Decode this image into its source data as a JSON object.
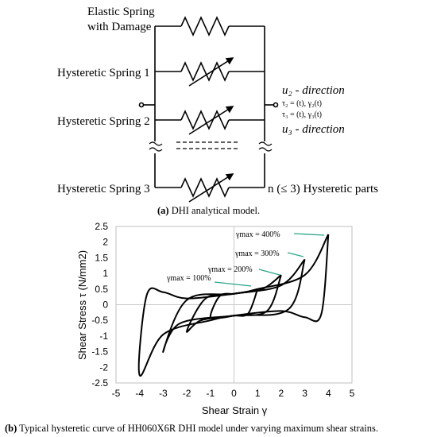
{
  "model": {
    "springs": [
      {
        "label_line1": "Elastic Spring",
        "label_line2": "with Damage"
      },
      {
        "label": "Hysteretic Spring 1"
      },
      {
        "label": "Hysteretic Spring 2"
      },
      {
        "label": "Hysteretic Spring 3"
      }
    ],
    "u2_dir": "u₂ - direction",
    "tau2": "τ₂ = (t), γ₂(t)",
    "tau3": "τ₃ = (t), γ₃(t)",
    "u3_dir": "u₃ - direction",
    "n_parts": "n (≤ 3) Hysteretic parts",
    "caption_tag": "(a)",
    "caption_text": " DHI analytical model."
  },
  "chart_data": {
    "type": "line",
    "xlabel": "Shear Strain γ",
    "ylabel": "Shear Stress τ (N/mm2)",
    "xlim": [
      -5,
      5
    ],
    "ylim": [
      -2.5,
      2.5
    ],
    "x_ticks": [
      "-5",
      "-4",
      "-3",
      "-2",
      "-1",
      "0",
      "1",
      "2",
      "3",
      "4",
      "5"
    ],
    "y_ticks": [
      "2.5",
      "2",
      "1.5",
      "1",
      "0.5",
      "0",
      "-0.5",
      "-1",
      "-1.5",
      "-2",
      "-2.5"
    ],
    "annotations": [
      "γmax = 400%",
      "γmax = 300%",
      "γmax = 200%",
      "γmax = 100%"
    ],
    "series": [
      {
        "values": [
          [
            1,
            0.5
          ],
          [
            0.6,
            0.42
          ],
          [
            0,
            0.35
          ],
          [
            -0.6,
            0.28
          ],
          [
            -1,
            -0.38
          ],
          [
            -0.6,
            -0.42
          ],
          [
            0,
            -0.35
          ],
          [
            0.6,
            -0.28
          ],
          [
            1,
            0.5
          ]
        ]
      },
      {
        "values": [
          [
            2,
            0.95
          ],
          [
            1.2,
            0.5
          ],
          [
            0,
            0.35
          ],
          [
            -1.2,
            0.2
          ],
          [
            -2,
            -0.85
          ],
          [
            -1.4,
            -0.5
          ],
          [
            0,
            -0.35
          ],
          [
            1.4,
            -0.2
          ],
          [
            2,
            0.95
          ]
        ]
      },
      {
        "values": [
          [
            3,
            1.45
          ],
          [
            2,
            0.62
          ],
          [
            0,
            0.35
          ],
          [
            -2,
            0.15
          ],
          [
            -3,
            -1.5
          ],
          [
            -2.3,
            -0.6
          ],
          [
            0,
            -0.35
          ],
          [
            2.3,
            -0.15
          ],
          [
            3,
            1.45
          ]
        ]
      },
      {
        "values": [
          [
            4,
            2.25
          ],
          [
            3,
            0.95
          ],
          [
            1,
            0.5
          ],
          [
            0,
            0.35
          ],
          [
            -2,
            0.2
          ],
          [
            -3,
            0.4
          ],
          [
            -3.7,
            0.3
          ],
          [
            -4,
            -2.25
          ],
          [
            -3,
            -0.95
          ],
          [
            -1,
            -0.5
          ],
          [
            0,
            -0.35
          ],
          [
            2,
            -0.2
          ],
          [
            3,
            -0.4
          ],
          [
            3.7,
            -0.3
          ],
          [
            4,
            2.25
          ]
        ]
      }
    ],
    "caption_tag": "(b)",
    "caption_text": " Typical hysteretic curve of HH060X6R DHI model under varying maximum shear strains."
  }
}
